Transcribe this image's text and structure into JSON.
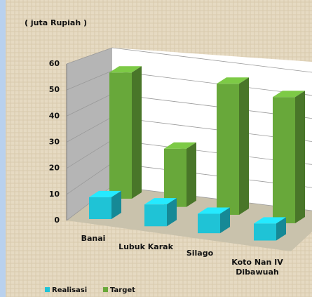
{
  "chart_data": {
    "type": "bar3d",
    "axis_label": "( juta Rupiah )",
    "categories": [
      "Banai",
      "Lubuk Karak",
      "Silago",
      "Koto Nan IV Dibawuah"
    ],
    "series": [
      {
        "name": "Realisasi",
        "color": "#1fc3d6",
        "values": [
          9,
          9,
          8,
          7
        ]
      },
      {
        "name": "Target",
        "color": "#68a83a",
        "values": [
          52,
          24,
          54,
          52
        ]
      }
    ],
    "ylim": [
      0,
      60
    ],
    "yticks": [
      0,
      10,
      20,
      30,
      40,
      50,
      60
    ],
    "grid": true,
    "legend": "bottom"
  }
}
